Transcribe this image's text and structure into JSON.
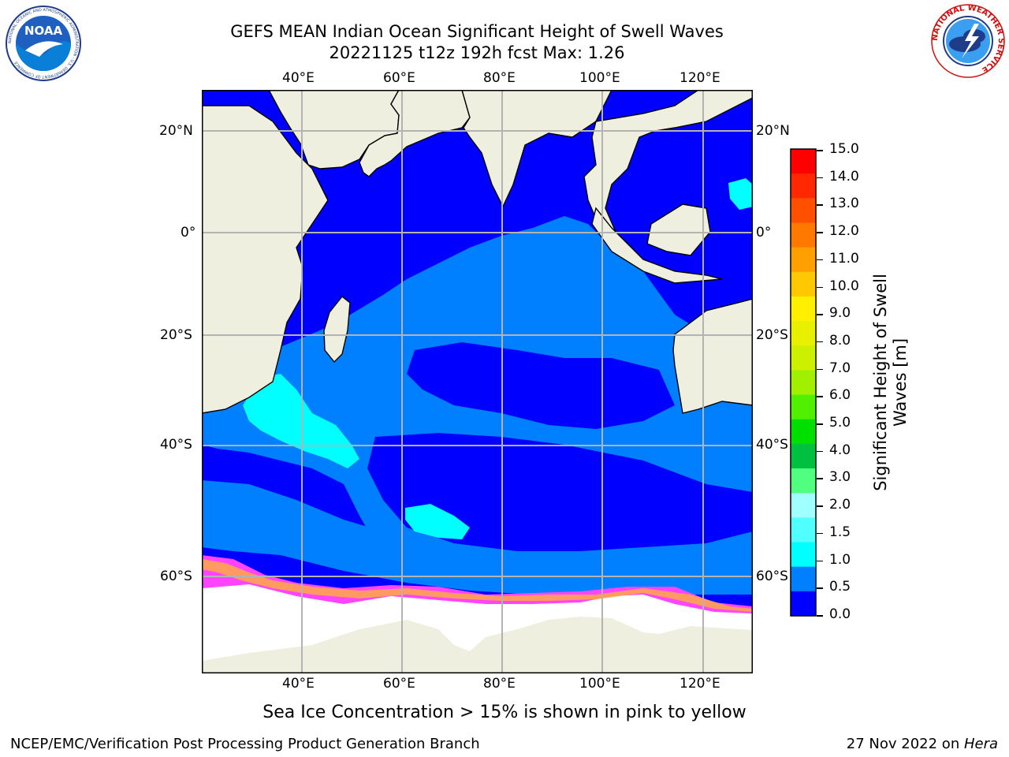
{
  "header": {
    "title_line1": "GEFS MEAN Indian Ocean Significant Height of Swell Waves",
    "title_line2": "20221125 t12z 192h fcst   Max: 1.26"
  },
  "logos": {
    "left": {
      "name": "noaa-logo",
      "text": "NOAA",
      "ring_text": "NATIONAL OCEANIC AND ATMOSPHERIC ADMINISTRATION · U.S. DEPARTMENT OF COMMERCE"
    },
    "right": {
      "name": "nws-logo",
      "ring_text": "NATIONAL WEATHER SERVICE"
    }
  },
  "map": {
    "lon_ticks": [
      "40°E",
      "60°E",
      "80°E",
      "100°E",
      "120°E"
    ],
    "lat_ticks": [
      "20°N",
      "0°",
      "20°S",
      "40°S",
      "60°S"
    ],
    "colors": {
      "deep_blue": "#0000ff",
      "mid_blue": "#0080ff",
      "cyan": "#00ffff",
      "land": "#efefdf",
      "ice_pink": "#ff44ff",
      "ice_orange": "#ffaa44",
      "grid": "#b3b3b3"
    }
  },
  "colorbar": {
    "title_line1": "Significant Height of Swell",
    "title_line2": "Waves [m]",
    "labels": [
      "15.0",
      "14.0",
      "13.0",
      "12.0",
      "11.0",
      "10.0",
      "9.0",
      "8.0",
      "7.0",
      "6.0",
      "5.0",
      "4.0",
      "3.0",
      "2.0",
      "1.5",
      "1.0",
      "0.5",
      "0.0"
    ],
    "colors": [
      "#ff0000",
      "#ff2800",
      "#ff5000",
      "#ff7800",
      "#ffa000",
      "#ffc800",
      "#fff000",
      "#e8f000",
      "#ccf000",
      "#a0f000",
      "#50f000",
      "#00e000",
      "#00c040",
      "#50ff80",
      "#a0ffff",
      "#50ffff",
      "#00ffff",
      "#0080ff",
      "#0000ff"
    ]
  },
  "caption": "Sea Ice Concentration > 15% is shown in pink to yellow",
  "footer": {
    "left": "NCEP/EMC/Verification Post Processing Product Generation Branch",
    "right_date": "27 Nov 2022 on ",
    "right_host": "Hera"
  }
}
